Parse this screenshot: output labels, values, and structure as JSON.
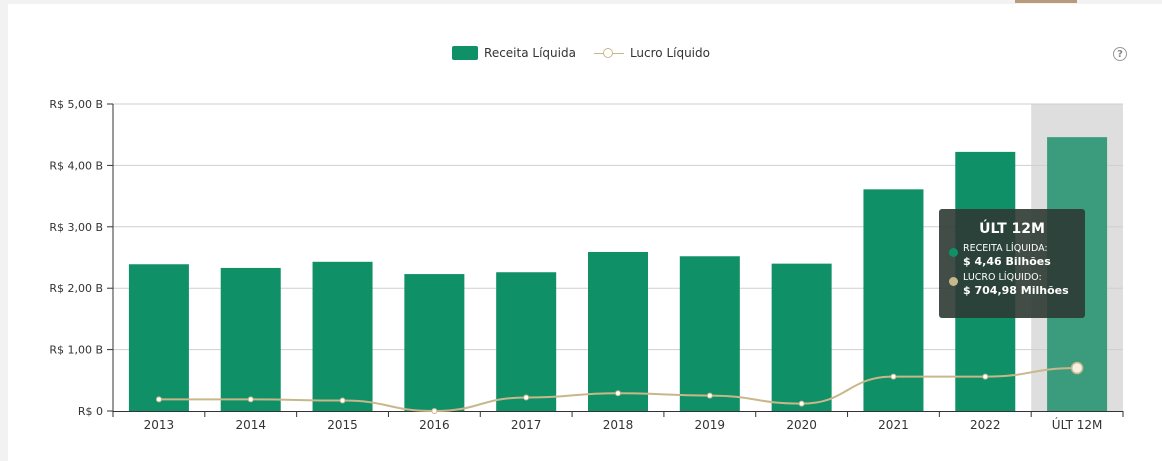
{
  "legend": {
    "revenue_label": "Receita Líquida",
    "profit_label": "Lucro Líquido"
  },
  "help_icon": "question-circle-icon",
  "colors": {
    "revenue": "#0f9066",
    "revenue_highlight": "#3a9c7c",
    "profit": "#c9b78c",
    "highlight_band": "#dedede",
    "tooltip_bg": "#2d3a34"
  },
  "tooltip": {
    "title": "ÚLT 12M",
    "revenue_label": "RECEITA LÍQUIDA:",
    "revenue_value": "$ 4,46 Bilhões",
    "profit_label": "LUCRO LÍQUIDO:",
    "profit_value": "$ 704,98 Milhões"
  },
  "chart_data": {
    "type": "bar",
    "categories": [
      "2013",
      "2014",
      "2015",
      "2016",
      "2017",
      "2018",
      "2019",
      "2020",
      "2021",
      "2022",
      "ÚLT 12M"
    ],
    "series": [
      {
        "name": "Receita Líquida",
        "type": "bar",
        "values": [
          2.39,
          2.33,
          2.43,
          2.23,
          2.26,
          2.59,
          2.52,
          2.4,
          3.61,
          4.22,
          4.46
        ]
      },
      {
        "name": "Lucro Líquido",
        "type": "line",
        "values": [
          0.19,
          0.19,
          0.17,
          0.0,
          0.22,
          0.29,
          0.25,
          0.12,
          0.56,
          0.56,
          0.7
        ]
      }
    ],
    "y_ticks": [
      0,
      1,
      2,
      3,
      4,
      5
    ],
    "y_tick_labels": [
      "R$ 0",
      "R$  1,00 B",
      "R$  2,00 B",
      "R$  3,00 B",
      "R$  4,00 B",
      "R$  5,00 B"
    ],
    "ylim": [
      0,
      5
    ],
    "highlighted_category": "ÚLT 12M",
    "grid": true,
    "legend_position": "top-center"
  }
}
